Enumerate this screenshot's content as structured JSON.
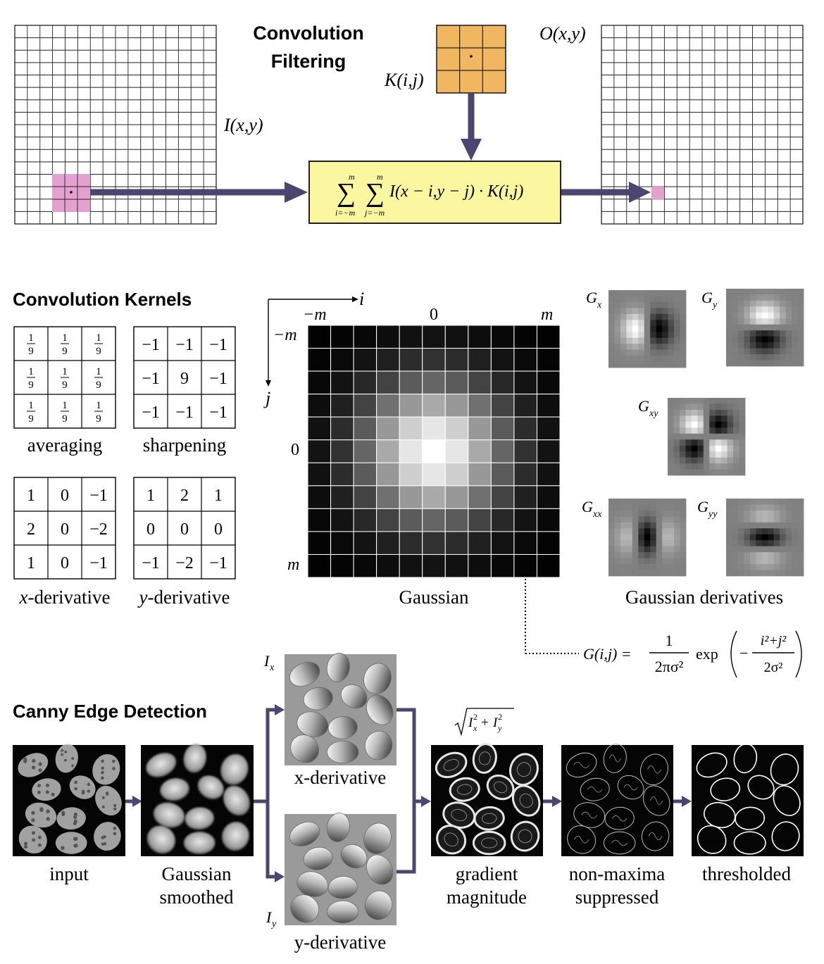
{
  "convolution": {
    "title_line1": "Convolution",
    "title_line2": "Filtering",
    "input_label": "I(x,y)",
    "kernel_label": "K(i,j)",
    "output_label": "O(x,y)",
    "formula_sum_upper": "m",
    "formula_sum_lower_i": "i=−m",
    "formula_sum_lower_j": "j=−m",
    "formula_body": "I(x − i,y − j) · K(i,j)",
    "grid_color": "#222222",
    "input_highlight_color": "#e4a0cf",
    "kernel_color": "#f0b760",
    "formula_box_color": "#fbf7a0",
    "arrow_color": "#4c4570"
  },
  "kernels": {
    "title": "Convolution Kernels",
    "items": [
      {
        "name": "averaging",
        "label": "averaging",
        "cells": [
          "1/9",
          "1/9",
          "1/9",
          "1/9",
          "1/9",
          "1/9",
          "1/9",
          "1/9",
          "1/9"
        ]
      },
      {
        "name": "sharpening",
        "label": "sharpening",
        "cells": [
          "−1",
          "−1",
          "−1",
          "−1",
          "9",
          "−1",
          "−1",
          "−1",
          "−1"
        ]
      },
      {
        "name": "x-derivative",
        "label": "x-derivative",
        "cells": [
          "1",
          "0",
          "−1",
          "2",
          "0",
          "−2",
          "1",
          "0",
          "−1"
        ]
      },
      {
        "name": "y-derivative",
        "label": "y-derivative",
        "cells": [
          "1",
          "2",
          "1",
          "0",
          "0",
          "0",
          "−1",
          "−2",
          "−1"
        ]
      }
    ],
    "gaussian": {
      "label": "Gaussian",
      "axis_i": "i",
      "axis_j": "j",
      "tick_neg_m": "−m",
      "tick_zero": "0",
      "tick_m": "m",
      "grid_size": 11,
      "sigma": 2.2,
      "formula_lhs": "G(i,j) =",
      "formula_num": "1",
      "formula_den": "2πσ²",
      "formula_exp": "exp",
      "formula_exp_num": "i²+j²",
      "formula_exp_den": "2σ²"
    },
    "derivatives": {
      "label": "Gaussian derivatives",
      "items": [
        "Gx",
        "Gy",
        "Gxy",
        "Gxx",
        "Gyy"
      ]
    }
  },
  "canny": {
    "title": "Canny Edge Detection",
    "stages": [
      {
        "name": "input",
        "line1": "input",
        "line2": ""
      },
      {
        "name": "smoothed",
        "line1": "Gaussian",
        "line2": "smoothed"
      },
      {
        "name": "x-derivative",
        "line1": "x-derivative",
        "line2": "",
        "tag": "Ix"
      },
      {
        "name": "y-derivative",
        "line1": "y-derivative",
        "line2": "",
        "tag": "Iy"
      },
      {
        "name": "gradient",
        "line1": "gradient",
        "line2": "magnitude",
        "formula": "√(Ix² + Iy²)"
      },
      {
        "name": "nonmax",
        "line1": "non-maxima",
        "line2": "suppressed"
      },
      {
        "name": "thresholded",
        "line1": "thresholded",
        "line2": ""
      }
    ]
  }
}
